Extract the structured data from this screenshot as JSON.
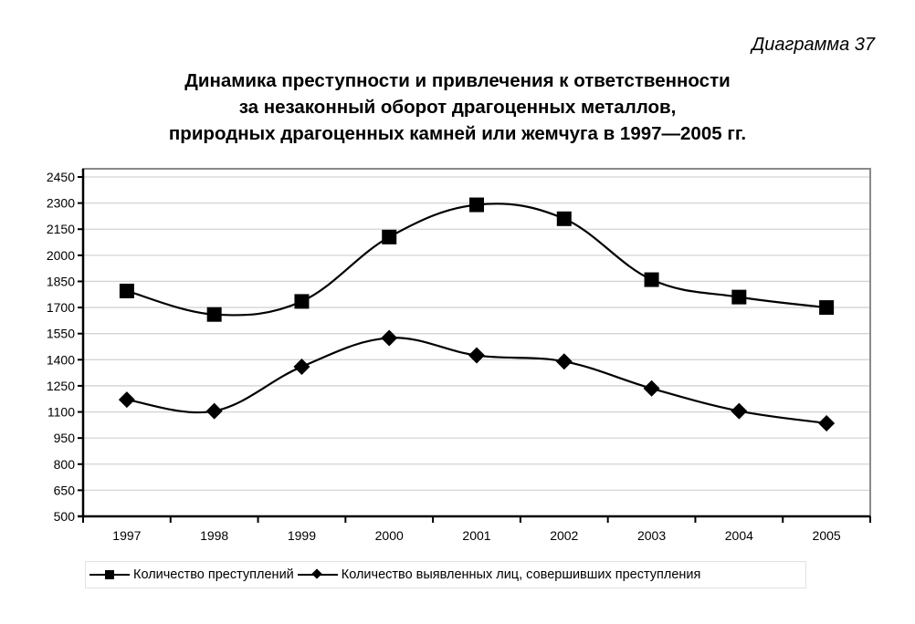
{
  "header": {
    "diagram_label": "Диаграмма 37",
    "title_lines": [
      "Динамика преступности и привлечения к ответственности",
      "за незаконный оборот драгоценных металлов,",
      "природных драгоценных камней или жемчуга в 1997—2005 гг."
    ]
  },
  "legend": {
    "items": [
      {
        "label": "Количество преступлений",
        "marker": "square"
      },
      {
        "label": "Количество выявленных лиц, совершивших преступления",
        "marker": "diamond"
      }
    ]
  },
  "chart_data": {
    "type": "line",
    "title": "Динамика преступности и привлечения к ответственности за незаконный оборот драгоценных металлов, природных драгоценных камней или жемчуга в 1997—2005 гг.",
    "xlabel": "",
    "ylabel": "",
    "categories": [
      "1997",
      "1998",
      "1999",
      "2000",
      "2001",
      "2002",
      "2003",
      "2004",
      "2005"
    ],
    "series": [
      {
        "name": "Количество преступлений",
        "marker": "square",
        "values": [
          1795,
          1660,
          1735,
          2105,
          2290,
          2210,
          1860,
          1760,
          1700
        ]
      },
      {
        "name": "Количество выявленных лиц, совершивших преступления",
        "marker": "diamond",
        "values": [
          1170,
          1105,
          1360,
          1525,
          1425,
          1390,
          1235,
          1105,
          1035
        ]
      }
    ],
    "ylim": [
      500,
      2450
    ],
    "yticks": [
      500,
      650,
      800,
      950,
      1100,
      1250,
      1400,
      1550,
      1700,
      1850,
      2000,
      2150,
      2300,
      2450
    ],
    "grid": true,
    "legend_position": "bottom",
    "smoothed": true
  }
}
